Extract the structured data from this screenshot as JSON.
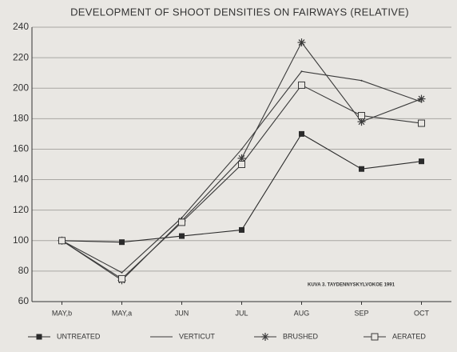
{
  "chart_data": {
    "type": "line",
    "title": "DEVELOPMENT OF SHOOT DENSITIES ON FAIRWAYS (RELATIVE)",
    "annotation": "KUVA 3. TAYDENNYSKYLVOKOE 1991",
    "categories": [
      "MAY,b",
      "MAY,a",
      "JUN",
      "JUL",
      "AUG",
      "SEP",
      "OCT"
    ],
    "series": [
      {
        "name": "UNTREATED",
        "color": "#2b2b2b",
        "marker": "square",
        "values": [
          100,
          99,
          103,
          107,
          170,
          147,
          152
        ]
      },
      {
        "name": "VERTICUT",
        "color": "#3a3a3a",
        "marker": "none",
        "values": [
          100,
          79,
          115,
          160,
          211,
          205,
          191
        ]
      },
      {
        "name": "BRUSHED",
        "color": "#3a3a3a",
        "marker": "asterisk",
        "values": [
          100,
          74,
          113,
          154,
          230,
          178,
          193
        ]
      },
      {
        "name": "AERATED",
        "color": "#3a3a3a",
        "marker": "open-square",
        "values": [
          100,
          75,
          112,
          150,
          202,
          182,
          177
        ]
      }
    ],
    "ylim": [
      60,
      240
    ],
    "yticks": [
      60,
      80,
      100,
      120,
      140,
      160,
      180,
      200,
      220,
      240
    ],
    "grid": true
  }
}
